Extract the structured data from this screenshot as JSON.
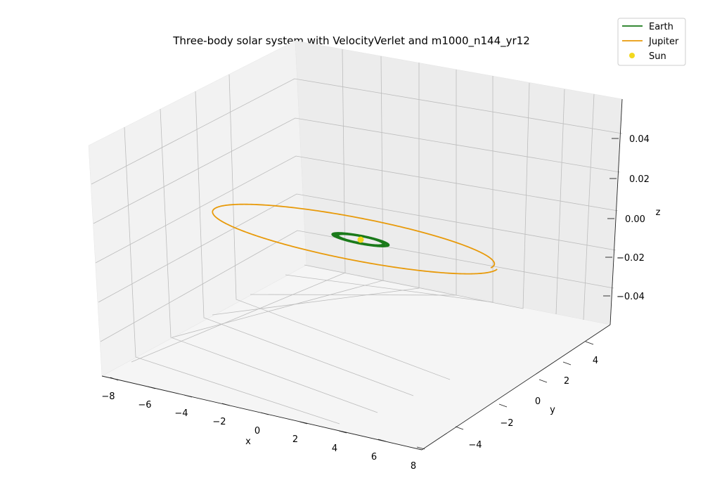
{
  "chart_data": {
    "type": "line",
    "projection": "3d",
    "title": "Three-body solar system with VelocityVerlet and m1000_n144_yr12",
    "xlabel": "x",
    "ylabel": "y",
    "zlabel": "z",
    "xlim": [
      -8.5,
      8.5
    ],
    "ylim": [
      -5.5,
      5.5
    ],
    "zlim": [
      -0.055,
      0.055
    ],
    "x_ticks": [
      "−8",
      "−6",
      "−4",
      "−2",
      "0",
      "2",
      "4",
      "6",
      "8"
    ],
    "y_ticks": [
      "−4",
      "−2",
      "0",
      "2",
      "4"
    ],
    "z_ticks": [
      "0.04",
      "0.02",
      "0.00",
      "−0.02",
      "−0.04"
    ],
    "grid": true,
    "legend_position": "top-right",
    "series": [
      {
        "name": "Earth",
        "kind": "line",
        "color": "#1a7a1a",
        "orbit_radius": 1.0,
        "revolutions": 12,
        "z": 0
      },
      {
        "name": "Jupiter",
        "kind": "line",
        "color": "#e89a0a",
        "orbit_radius": 5.2,
        "revolutions": 1,
        "z": 0
      },
      {
        "name": "Sun",
        "kind": "point",
        "color": "#f2d81e",
        "x": 0,
        "y": 0,
        "z": 0
      }
    ]
  }
}
